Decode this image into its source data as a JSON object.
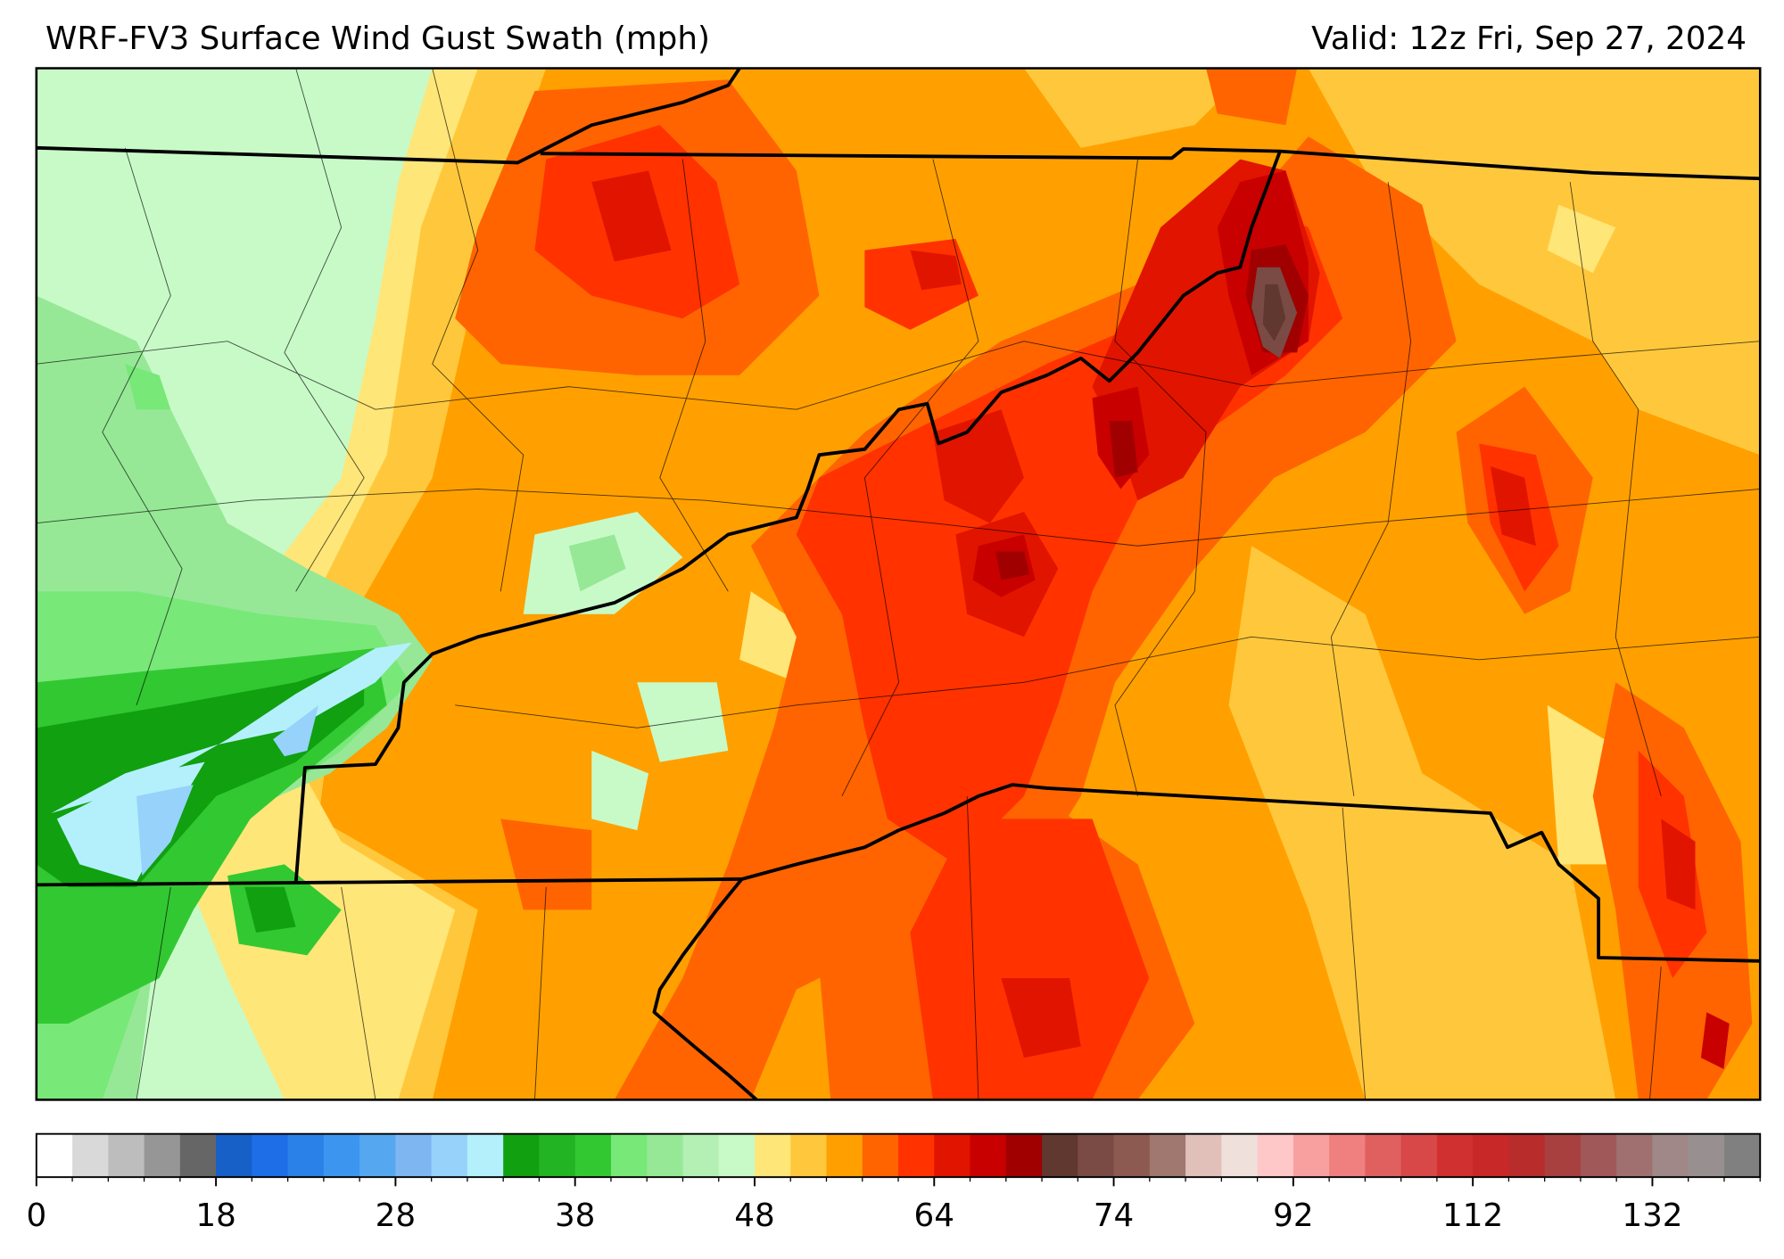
{
  "header": {
    "title": "WRF-FV3 Surface Wind Gust Swath (mph)",
    "valid": "Valid: 12z Fri, Sep 27, 2024"
  },
  "colorbar": {
    "colors": [
      "#ffffff",
      "#d9d9d9",
      "#bdbdbd",
      "#969696",
      "#666666",
      "#1660c8",
      "#1e6ee8",
      "#2a82e8",
      "#3c96f0",
      "#55a8f0",
      "#7eb6f2",
      "#96d2fa",
      "#b4f0fc",
      "#10a010",
      "#22b422",
      "#32c832",
      "#78e878",
      "#96e896",
      "#b4f0b4",
      "#c8fac8",
      "#ffe678",
      "#ffc83c",
      "#ffa000",
      "#ff6400",
      "#ff3200",
      "#e11400",
      "#c80000",
      "#a00000",
      "#603830",
      "#7a4a44",
      "#8c5a50",
      "#a07870",
      "#e0c0b8",
      "#f0e0dc",
      "#ffc8c8",
      "#f8a0a0",
      "#f08080",
      "#e06060",
      "#d84848",
      "#d03030",
      "#c82828",
      "#b82c2c",
      "#a84040",
      "#a05858",
      "#a07070",
      "#a08888",
      "#989090",
      "#808080"
    ],
    "ticks": [
      0,
      18,
      28,
      38,
      48,
      64,
      74,
      92,
      112,
      132
    ]
  }
}
